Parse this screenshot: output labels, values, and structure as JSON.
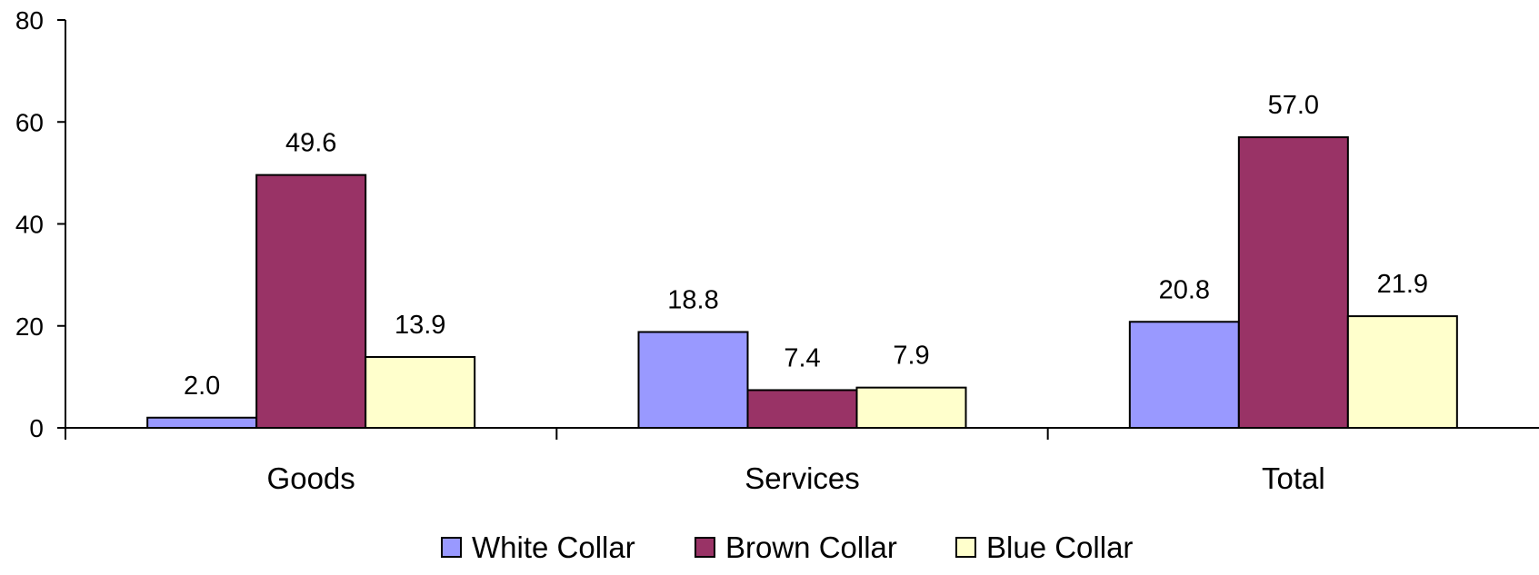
{
  "chart_data": {
    "type": "bar",
    "categories": [
      "Goods",
      "Services",
      "Total"
    ],
    "series": [
      {
        "name": "White Collar",
        "values": [
          2.0,
          18.8,
          20.8
        ],
        "color": "#9999FF"
      },
      {
        "name": "Brown Collar",
        "values": [
          49.6,
          7.4,
          57.0
        ],
        "color": "#993366"
      },
      {
        "name": "Blue Collar",
        "values": [
          13.9,
          7.9,
          21.9
        ],
        "color": "#FFFFCC"
      }
    ],
    "value_labels": [
      [
        "2.0",
        "18.8",
        "20.8"
      ],
      [
        "49.6",
        "7.4",
        "57.0"
      ],
      [
        "13.9",
        "7.9",
        "21.9"
      ]
    ],
    "y_ticks": [
      "0",
      "20",
      "40",
      "60",
      "80"
    ],
    "ylim": [
      0,
      80
    ],
    "title": "",
    "xlabel": "",
    "ylabel": "",
    "grid": false,
    "legend_position": "bottom"
  }
}
